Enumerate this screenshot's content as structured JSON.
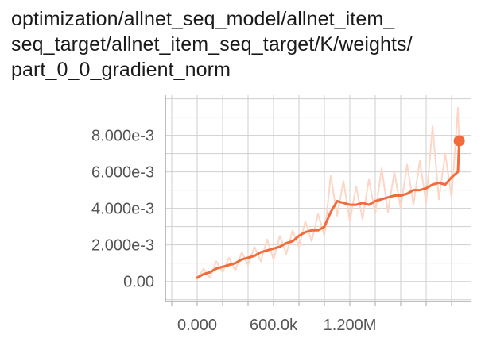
{
  "title_lines": [
    "optimization/allnet_seq_model/allnet_item_",
    "seq_target/allnet_item_seq_target/K/weights/",
    "part_0_0_gradient_norm"
  ],
  "colors": {
    "background": "#ffffff",
    "grid": "#cfcfcf",
    "axis": "#aaaaaa",
    "smoothed_line": "#f26b3a",
    "raw_line": "#fcd6c6",
    "title_text": "#1a1a1a",
    "tick_text": "#555555"
  },
  "chart_data": {
    "type": "line",
    "title": "optimization/allnet_seq_model/allnet_item_seq_target/allnet_item_seq_target/K/weights/part_0_0_gradient_norm",
    "xlabel": "",
    "ylabel": "",
    "xlim": [
      -250000,
      2150000
    ],
    "ylim": [
      -0.0011,
      0.0102
    ],
    "grid": true,
    "legend": "none",
    "x_ticks": [
      0,
      600000,
      1200000
    ],
    "x_tick_labels": [
      "0.000",
      "600.0k",
      "1.200M"
    ],
    "y_ticks": [
      0,
      0.002,
      0.004,
      0.006,
      0.008
    ],
    "y_tick_labels": [
      "0.00",
      "2.000e-3",
      "4.000e-3",
      "6.000e-3",
      "8.000e-3"
    ],
    "series": [
      {
        "role": "smoothed",
        "x": [
          0,
          50000,
          100000,
          150000,
          200000,
          250000,
          300000,
          350000,
          400000,
          450000,
          500000,
          550000,
          600000,
          650000,
          700000,
          750000,
          800000,
          850000,
          900000,
          950000,
          1000000,
          1050000,
          1100000,
          1150000,
          1200000,
          1250000,
          1300000,
          1350000,
          1400000,
          1450000,
          1500000,
          1550000,
          1600000,
          1650000,
          1700000,
          1750000,
          1800000,
          1850000,
          1900000,
          1950000,
          2000000,
          2050000,
          2060000
        ],
        "y": [
          0.0002,
          0.0004,
          0.0005,
          0.0007,
          0.0008,
          0.0009,
          0.001,
          0.0012,
          0.0013,
          0.0014,
          0.0016,
          0.0017,
          0.0018,
          0.0019,
          0.0021,
          0.0022,
          0.0025,
          0.0027,
          0.0028,
          0.0028,
          0.003,
          0.0038,
          0.0044,
          0.0043,
          0.0042,
          0.0042,
          0.0043,
          0.0042,
          0.0044,
          0.0045,
          0.0046,
          0.0047,
          0.0047,
          0.0048,
          0.005,
          0.005,
          0.0051,
          0.0053,
          0.0054,
          0.0053,
          0.0057,
          0.006,
          0.0077
        ]
      },
      {
        "role": "raw",
        "x": [
          0,
          50000,
          100000,
          150000,
          200000,
          250000,
          300000,
          350000,
          400000,
          450000,
          500000,
          550000,
          600000,
          650000,
          700000,
          750000,
          800000,
          850000,
          900000,
          950000,
          1000000,
          1050000,
          1100000,
          1150000,
          1200000,
          1250000,
          1300000,
          1350000,
          1400000,
          1450000,
          1500000,
          1550000,
          1600000,
          1650000,
          1700000,
          1750000,
          1800000,
          1850000,
          1900000,
          1950000,
          2000000,
          2050000,
          2060000
        ],
        "y": [
          0.0001,
          0.0007,
          0.0002,
          0.0011,
          0.0005,
          0.0013,
          0.0006,
          0.0016,
          0.0009,
          0.0019,
          0.0011,
          0.0023,
          0.0012,
          0.0025,
          0.0015,
          0.0028,
          0.0019,
          0.0033,
          0.0022,
          0.0037,
          0.0025,
          0.0058,
          0.0036,
          0.0055,
          0.0033,
          0.0052,
          0.0034,
          0.0056,
          0.0037,
          0.0062,
          0.0038,
          0.006,
          0.004,
          0.0064,
          0.0042,
          0.0066,
          0.0043,
          0.0085,
          0.0045,
          0.007,
          0.0046,
          0.0095,
          0.0075
        ]
      }
    ]
  }
}
